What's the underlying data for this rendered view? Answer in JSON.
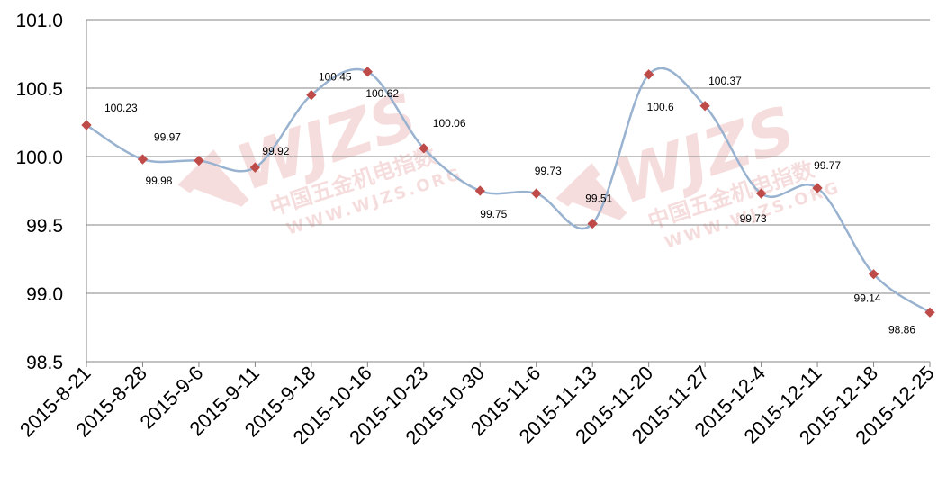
{
  "chart_data": {
    "type": "line",
    "title": "",
    "xlabel": "",
    "ylabel": "",
    "categories": [
      "2015-8-21",
      "2015-8-28",
      "2015-9-6",
      "2015-9-11",
      "2015-9-18",
      "2015-10-16",
      "2015-10-23",
      "2015-10-30",
      "2015-11-6",
      "2015-11-13",
      "2015-11-20",
      "2015-11-27",
      "2015-12-4",
      "2015-12-11",
      "2015-12-18",
      "2015-12-25"
    ],
    "series": [
      {
        "values": [
          100.23,
          99.98,
          99.97,
          99.92,
          100.45,
          100.62,
          100.06,
          99.75,
          99.73,
          99.51,
          100.6,
          100.37,
          99.73,
          99.77,
          99.14,
          98.86
        ],
        "color": "#98b2cf",
        "marker_color": "#be4b48"
      }
    ],
    "data_labels": [
      "100.23",
      "99.98",
      "99.97",
      "99.92",
      "100.45",
      "100.62",
      "100.06",
      "99.75",
      "99.73",
      "99.51",
      "100.6",
      "100.37",
      "99.73",
      "99.77",
      "99.14",
      "98.86"
    ],
    "yticks": [
      "98.5",
      "99.0",
      "99.5",
      "100.0",
      "100.5",
      "101.0"
    ],
    "ylim": [
      98.5,
      101.0
    ],
    "grid": true,
    "legend": "none"
  },
  "watermark": {
    "logo": "WJZS",
    "line1": "中国五金机电指数",
    "line2": "WWW.WJZS.ORG",
    "color": "#e8a0a0"
  }
}
